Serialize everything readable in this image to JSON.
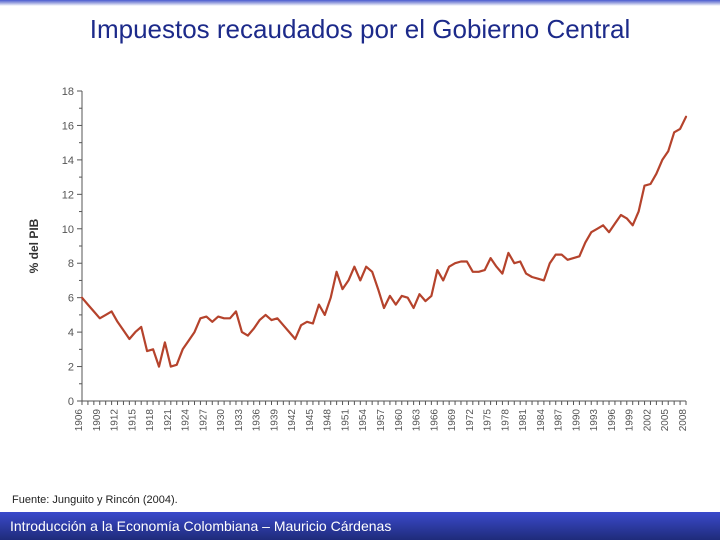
{
  "slide": {
    "title": "Impuestos recaudados por el Gobierno Central",
    "source": "Fuente: Junguito y Rincón (2004).",
    "footer": "Introducción a la Economía Colombiana – Mauricio Cárdenas"
  },
  "chart": {
    "type": "line",
    "ylabel": "% del PIB",
    "ylabel_fontsize": 12,
    "ylabel_fontweight": "bold",
    "ylim": [
      0,
      18
    ],
    "ytick_step": 2,
    "ytick_fontsize": 11,
    "xtick_fontsize": 10,
    "line_color": "#b5432c",
    "line_width": 2.2,
    "background_color": "#ffffff",
    "axis_color": "#555555",
    "tick_color": "#555555",
    "x_labels": [
      "1906",
      "1909",
      "1912",
      "1915",
      "1918",
      "1921",
      "1924",
      "1927",
      "1930",
      "1933",
      "1936",
      "1939",
      "1942",
      "1945",
      "1948",
      "1951",
      "1954",
      "1957",
      "1960",
      "1963",
      "1966",
      "1969",
      "1972",
      "1975",
      "1978",
      "1981",
      "1984",
      "1987",
      "1990",
      "1993",
      "1996",
      "1999",
      "2002",
      "2005",
      "2008"
    ],
    "data_years": [
      1906,
      1907,
      1908,
      1909,
      1910,
      1911,
      1912,
      1913,
      1914,
      1915,
      1916,
      1917,
      1918,
      1919,
      1920,
      1921,
      1922,
      1923,
      1924,
      1925,
      1926,
      1927,
      1928,
      1929,
      1930,
      1931,
      1932,
      1933,
      1934,
      1935,
      1936,
      1937,
      1938,
      1939,
      1940,
      1941,
      1942,
      1943,
      1944,
      1945,
      1946,
      1947,
      1948,
      1949,
      1950,
      1951,
      1952,
      1953,
      1954,
      1955,
      1956,
      1957,
      1958,
      1959,
      1960,
      1961,
      1962,
      1963,
      1964,
      1965,
      1966,
      1967,
      1968,
      1969,
      1970,
      1971,
      1972,
      1973,
      1974,
      1975,
      1976,
      1977,
      1978,
      1979,
      1980,
      1981,
      1982,
      1983,
      1984,
      1985,
      1986,
      1987,
      1988,
      1989,
      1990,
      1991,
      1992,
      1993,
      1994,
      1995,
      1996,
      1997,
      1998,
      1999,
      2000,
      2001,
      2002,
      2003,
      2004,
      2005,
      2006,
      2007,
      2008
    ],
    "data_values": [
      6.0,
      5.6,
      5.2,
      4.8,
      5.0,
      5.2,
      4.6,
      4.1,
      3.6,
      4.0,
      4.3,
      2.9,
      3.0,
      2.0,
      3.4,
      2.0,
      2.1,
      3.0,
      3.5,
      4.0,
      4.8,
      4.9,
      4.6,
      4.9,
      4.8,
      4.8,
      5.2,
      4.0,
      3.8,
      4.2,
      4.7,
      5.0,
      4.7,
      4.8,
      4.4,
      4.0,
      3.6,
      4.4,
      4.6,
      4.5,
      5.6,
      5.0,
      6.0,
      7.5,
      6.5,
      7.0,
      7.8,
      7.0,
      7.8,
      7.5,
      6.5,
      5.4,
      6.1,
      5.6,
      6.1,
      6.0,
      5.4,
      6.2,
      5.8,
      6.1,
      7.6,
      7.0,
      7.8,
      8.0,
      8.1,
      8.1,
      7.5,
      7.5,
      7.6,
      8.3,
      7.8,
      7.4,
      8.6,
      8.0,
      8.1,
      7.4,
      7.2,
      7.1,
      7.0,
      8.0,
      8.5,
      8.5,
      8.2,
      8.3,
      8.4,
      9.2,
      9.8,
      10.0,
      10.2,
      9.8,
      10.3,
      10.8,
      10.6,
      10.2,
      11.0,
      12.5,
      12.6,
      13.2,
      14.0,
      14.5,
      15.6,
      15.8,
      16.5
    ]
  }
}
